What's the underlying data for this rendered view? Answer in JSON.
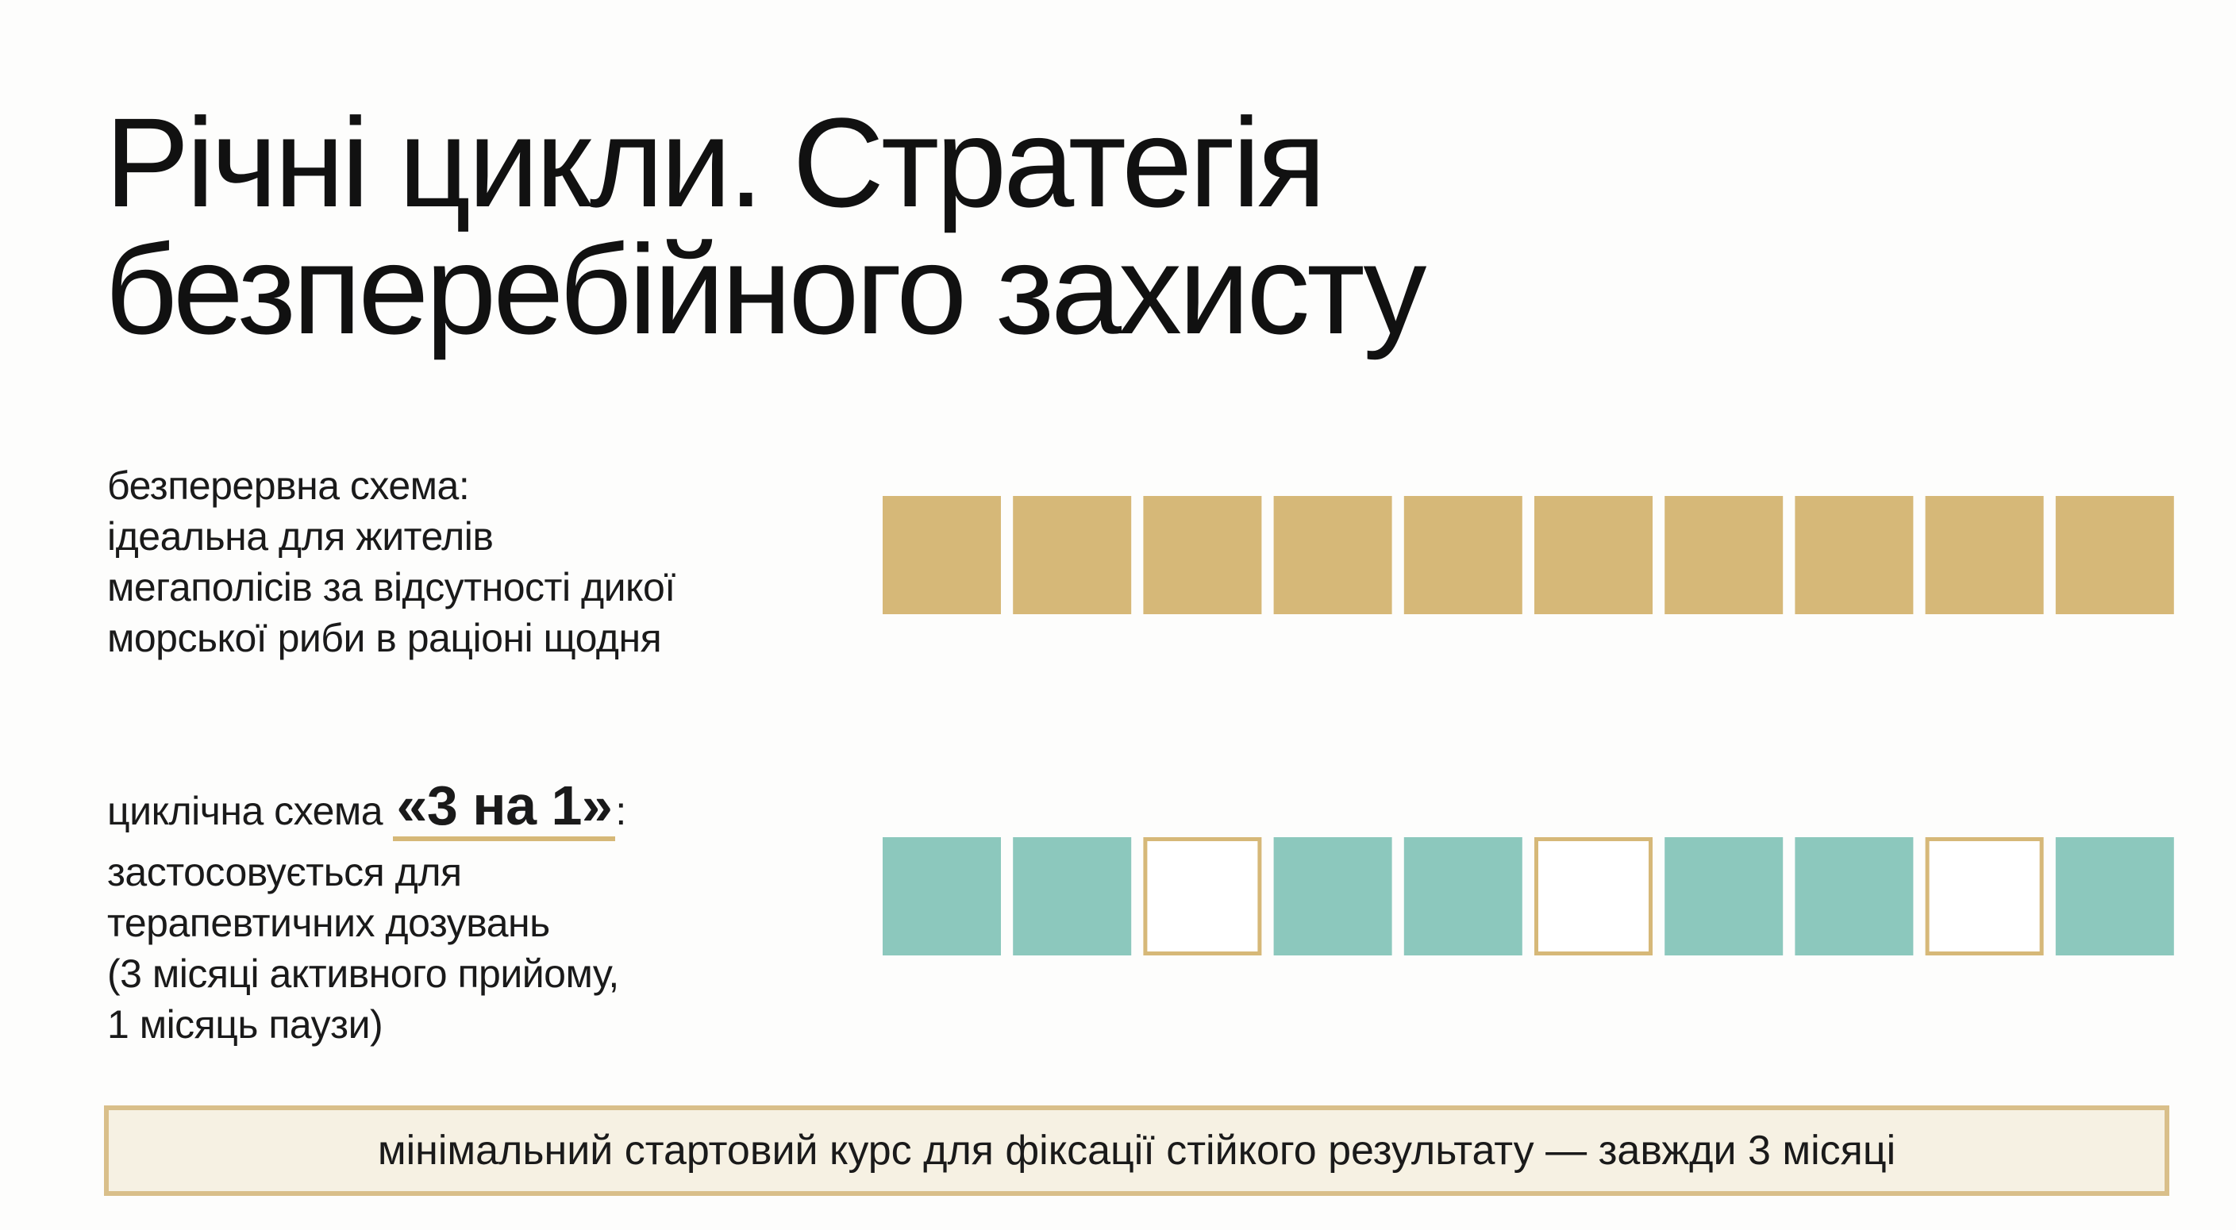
{
  "header": {
    "title_lines": [
      "Річні цикли. Стратегія",
      "безперебійного захисту"
    ]
  },
  "schemes": [
    {
      "label_lines": [
        "безперервна схема:",
        "ідеальна для жителів",
        "мегаполісів за відсутності дикої",
        "морської риби в раціоні щодня"
      ]
    },
    {
      "label_prefix": "циклічна схема",
      "label_highlight": "«3 на 1»",
      "label_suffix": ":",
      "label_lines": [
        "застосовується для",
        "терапевтичних дозувань",
        "(3 місяці активного прийому,",
        "1 місяць паузи)"
      ]
    }
  ],
  "footer": {
    "note": "мінімальний стартовий курс для фіксації стійкого результату — завжди 3 місяці"
  }
}
